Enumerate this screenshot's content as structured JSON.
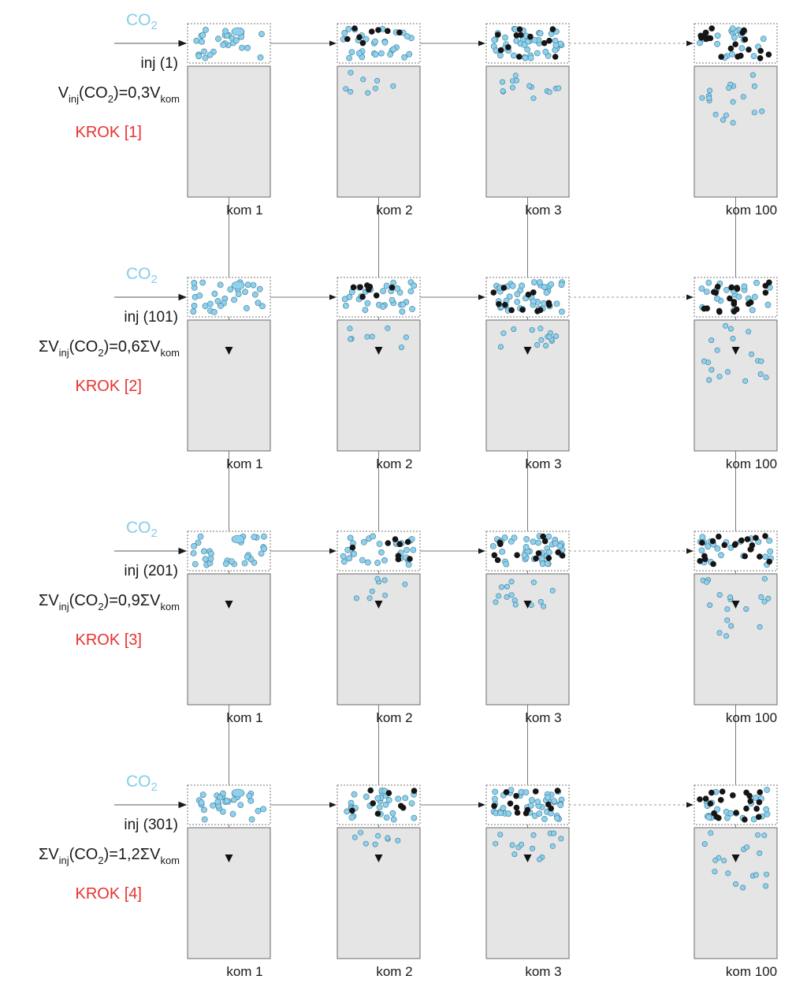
{
  "colors": {
    "co2": "#87cdea",
    "step": "#e8312f",
    "text": "#1a1a1a",
    "cell": "#e5e5e5",
    "bubble": "#8fd0ec",
    "bubble_stroke": "#3a7a95",
    "dark_bubble": "#151515"
  },
  "gas_label": "CO2",
  "steps": [
    {
      "inj_label": "inj (1)",
      "formula": {
        "prefix": "V",
        "sub1": "inj",
        "mid": "(CO",
        "sub2": "2",
        "post": ")=0,3V",
        "sub3": "kom"
      },
      "step_label": "KROK [1]"
    },
    {
      "inj_label": "inj (101)",
      "formula": {
        "prefix": "ΣV",
        "sub1": "inj",
        "mid": "(CO",
        "sub2": "2",
        "post": ")=0,6ΣV",
        "sub3": "kom"
      },
      "step_label": "KROK [2]"
    },
    {
      "inj_label": "inj (201)",
      "formula": {
        "prefix": "ΣV",
        "sub1": "inj",
        "mid": "(CO",
        "sub2": "2",
        "post": ")=0,9ΣV",
        "sub3": "kom"
      },
      "step_label": "KROK [3]"
    },
    {
      "inj_label": "inj (301)",
      "formula": {
        "prefix": "ΣV",
        "sub1": "inj",
        "mid": "(CO",
        "sub2": "2",
        "post": ")=1,2ΣV",
        "sub3": "kom"
      },
      "step_label": "KROK [4]"
    }
  ],
  "cells": [
    {
      "label": "kom 1"
    },
    {
      "label": "kom 2"
    },
    {
      "label": "kom 3"
    },
    {
      "label": "kom 100"
    }
  ]
}
